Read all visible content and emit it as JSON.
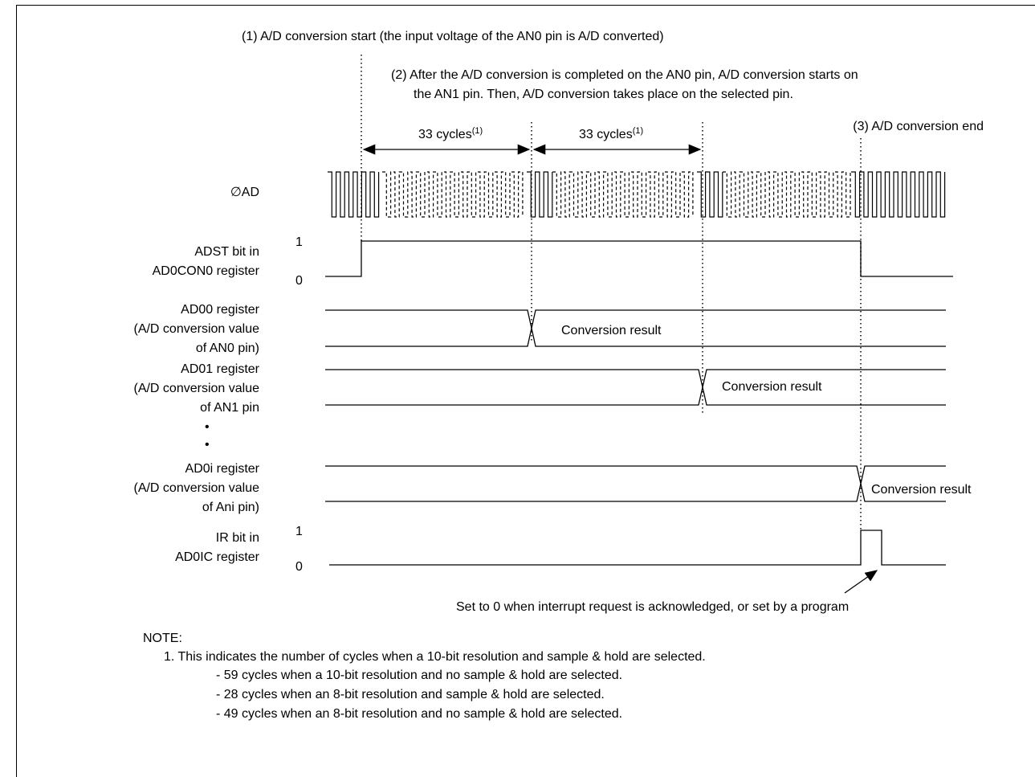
{
  "annotations": {
    "start": "(1) A/D conversion start (the input voltage of the AN0 pin is A/D converted)",
    "continue_line1": "(2) After the A/D conversion is completed on the AN0 pin, A/D conversion starts on",
    "continue_line2": "the AN1 pin. Then, A/D conversion takes place on the selected pin.",
    "end": "(3) A/D conversion end",
    "cycles_text": "33 cycles",
    "cycles_sup": "(1)",
    "ir_note": "Set to 0 when interrupt request is acknowledged, or set by a program"
  },
  "signals": {
    "clock": "∅AD",
    "adst_1": "ADST bit in",
    "adst_2": "AD0CON0 register",
    "ad00_1": "AD00 register",
    "ad00_2": "(A/D conversion value",
    "ad00_3": "of AN0 pin)",
    "ad01_1": "AD01 register",
    "ad01_2": "(A/D conversion value",
    "ad01_3": "of AN1 pin",
    "ad0i_1": "AD0i register",
    "ad0i_2": "(A/D conversion value",
    "ad0i_3": "of Ani pin)",
    "ir_1": "IR bit in",
    "ir_2": "AD0IC register",
    "bullet": "•",
    "level_high": "1",
    "level_low": "0",
    "result": "Conversion result"
  },
  "notes": {
    "heading": "NOTE:",
    "item1": "1. This indicates the number of cycles when a 10-bit resolution and sample & hold are selected.",
    "sub1": "- 59 cycles when a 10-bit resolution and no sample & hold are selected.",
    "sub2": "- 28 cycles when an 8-bit resolution and sample & hold are selected.",
    "sub3": "- 49 cycles when an 8-bit resolution and no sample & hold are selected."
  }
}
